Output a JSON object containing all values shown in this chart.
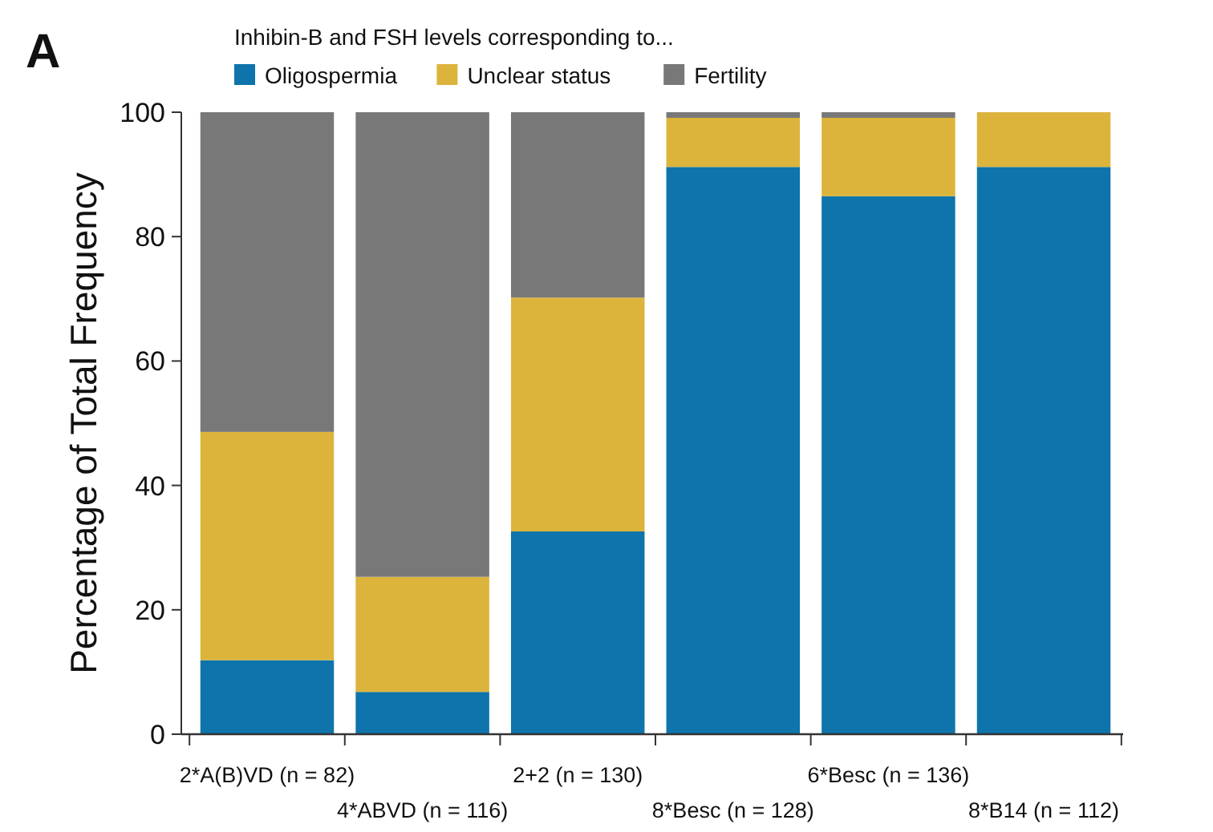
{
  "chart_data": {
    "type": "bar",
    "stacked": true,
    "legend_title": "Inhibin-B and FSH levels corresponding to...",
    "legend": "top left",
    "ylabel": "Percentage of Total Frequency",
    "annotations": [
      "A"
    ],
    "categories": [
      "2*A(B)VD (n = 82)",
      "4*ABVD (n = 116)",
      "2+2 (n = 130)",
      "8*Besc (n = 128)",
      "6*Besc (n = 136)",
      "8*B14 (n = 112)"
    ],
    "series": [
      {
        "name": "Oligospermia",
        "color": "#0e74ab",
        "values": [
          11.9,
          6.8,
          32.6,
          91.2,
          86.5,
          91.2
        ]
      },
      {
        "name": "Unclear status",
        "color": "#dcb43c",
        "values": [
          36.7,
          18.5,
          37.6,
          7.9,
          12.6,
          8.8
        ]
      },
      {
        "name": "Fertility",
        "color": "#787878",
        "values": [
          51.4,
          74.7,
          29.8,
          0.9,
          0.9,
          0
        ]
      }
    ],
    "ylim": [
      0,
      100
    ],
    "yticks": [
      0,
      20,
      40,
      60,
      80,
      100
    ]
  }
}
